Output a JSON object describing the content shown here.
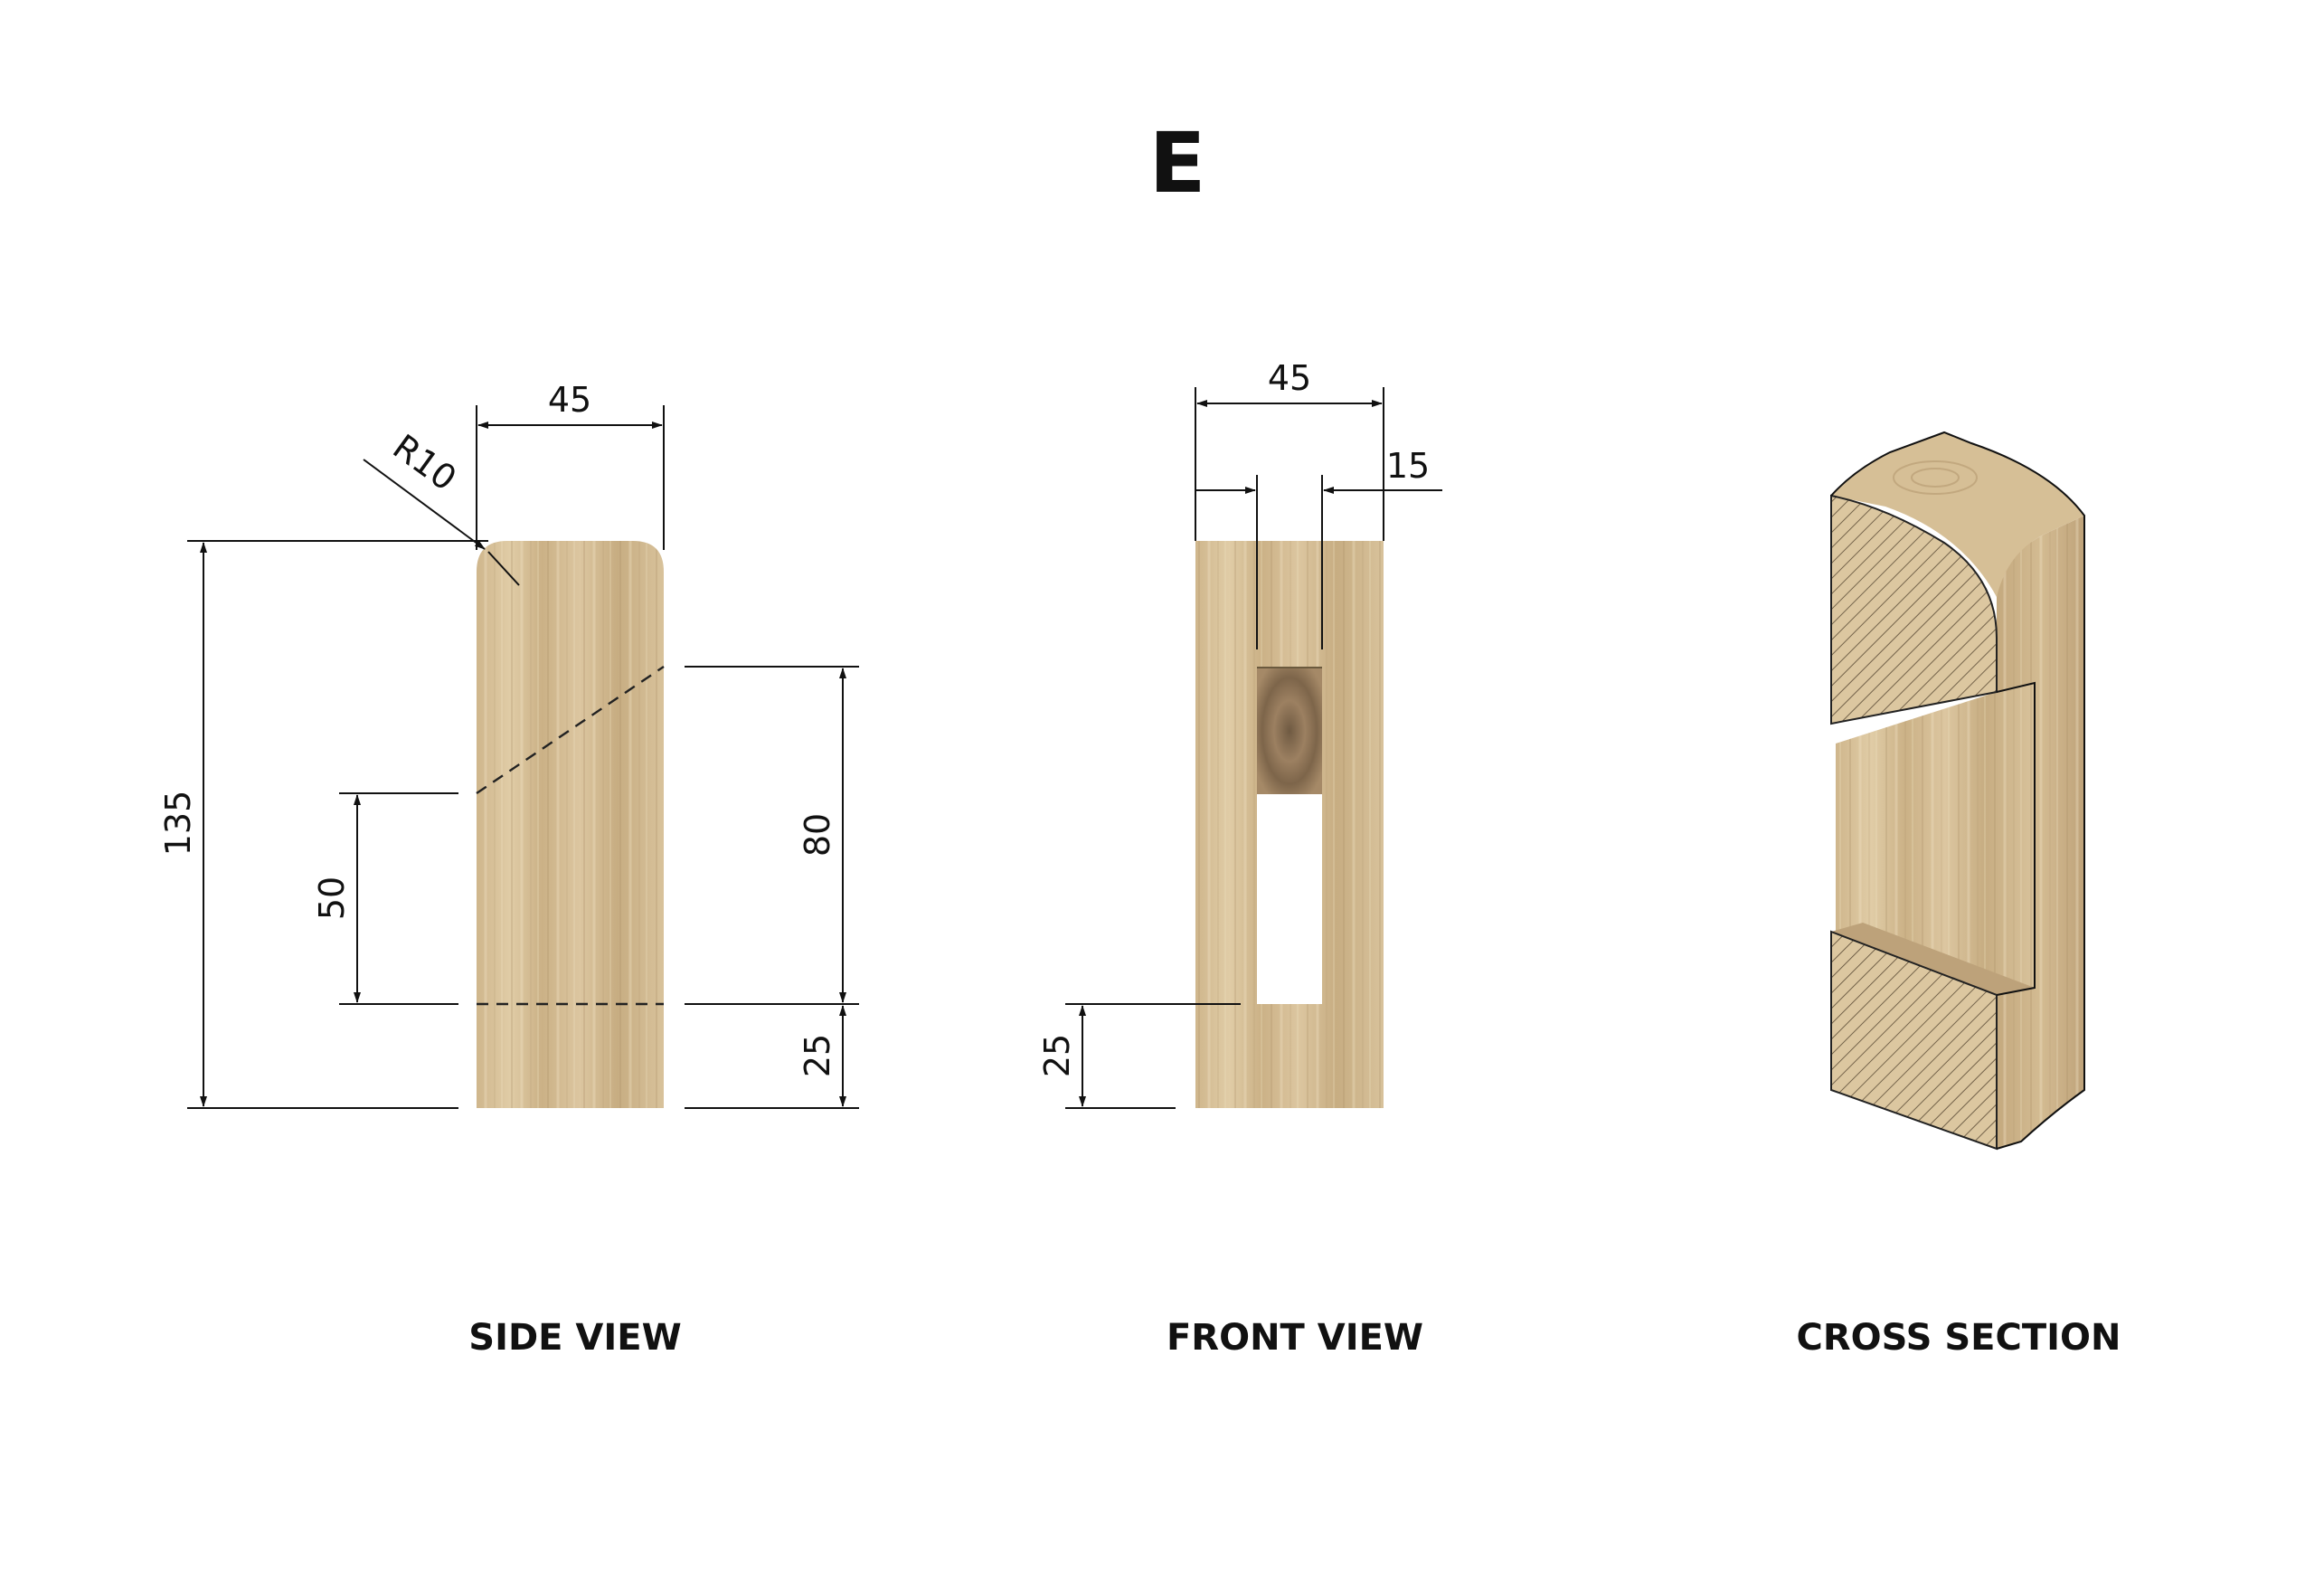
{
  "title": "E",
  "colors": {
    "wood_light": "#dcc7a0",
    "wood_mid": "#cdb48a",
    "wood_dark": "#b79c72",
    "end_grain": "#9c8061",
    "line": "#111111"
  },
  "side_view": {
    "caption": "SIDE VIEW",
    "dim_width": "45",
    "dim_radius": "R10",
    "dim_height": "135",
    "dim_mortise_inner": "50",
    "dim_mortise_outer": "80",
    "dim_base": "25"
  },
  "front_view": {
    "caption": "FRONT VIEW",
    "dim_width": "45",
    "dim_slot": "15",
    "dim_base": "25"
  },
  "cross_section": {
    "caption": "CROSS SECTION"
  }
}
